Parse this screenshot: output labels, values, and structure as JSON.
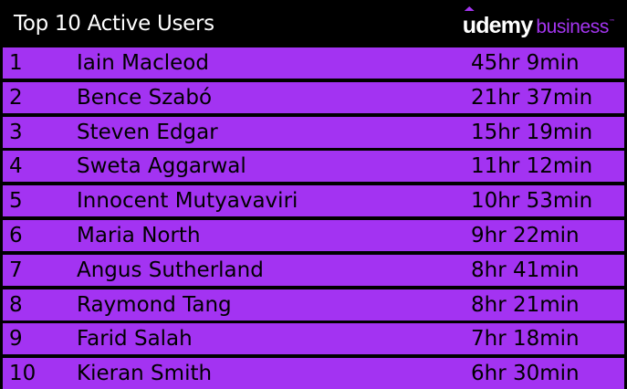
{
  "header": {
    "title": "Top 10 Active Users",
    "brand_name": "udemy",
    "brand_sub": "business",
    "brand_tm": "™"
  },
  "colors": {
    "row_background": "#a333f2",
    "brand_accent": "#a435f0",
    "page_background": "#000000"
  },
  "rows": [
    {
      "rank": "1",
      "name": "Iain Macleod",
      "time": "45hr 9min"
    },
    {
      "rank": "2",
      "name": "Bence Szabó",
      "time": "21hr 37min"
    },
    {
      "rank": "3",
      "name": "Steven Edgar",
      "time": "15hr 19min"
    },
    {
      "rank": "4",
      "name": "Sweta Aggarwal",
      "time": "11hr 12min"
    },
    {
      "rank": "5",
      "name": "Innocent Mutyavaviri",
      "time": "10hr 53min"
    },
    {
      "rank": "6",
      "name": "Maria North",
      "time": "9hr 22min"
    },
    {
      "rank": "7",
      "name": "Angus Sutherland",
      "time": "8hr 41min"
    },
    {
      "rank": "8",
      "name": "Raymond Tang",
      "time": "8hr 21min"
    },
    {
      "rank": "9",
      "name": "Farid Salah",
      "time": "7hr 18min"
    },
    {
      "rank": "10",
      "name": "Kieran Smith",
      "time": "6hr 30min"
    }
  ]
}
